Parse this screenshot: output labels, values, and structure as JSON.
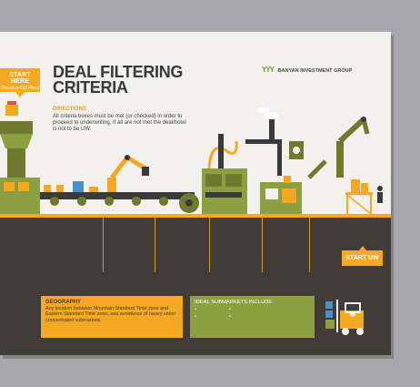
{
  "header": {
    "start_here_line1": "START HERE",
    "start_here_line2": "(Receive OD Files)",
    "title_line1": "DEAL FILTERING",
    "title_line2": "CRITERIA",
    "brand_name": "BANYAN INVESTMENT GROUP"
  },
  "directions": {
    "heading": "DIRECTIONS",
    "body": "All criteria boxes must be met (or checked) in order to proceed to underwriting. If all are not met the deal/hotel is not to be UW."
  },
  "start_uw_label": "START UW",
  "geography": {
    "heading": "GEOGRAPHY",
    "body": "Any location between Mountain Standard Time zone and Eastern Standard Time zone, and avoidance of heavy union concentrated submarkets"
  },
  "submarkets": {
    "heading": "IDEAL SUBMARKETS INCLUDE",
    "bullet": "•"
  },
  "colors": {
    "background": "#a8a8aa",
    "slide": "#f2f1ee",
    "accent_orange": "#f7a823",
    "olive_green": "#8ca041",
    "ground": "#423c37",
    "title_text": "#3a3a3a"
  }
}
